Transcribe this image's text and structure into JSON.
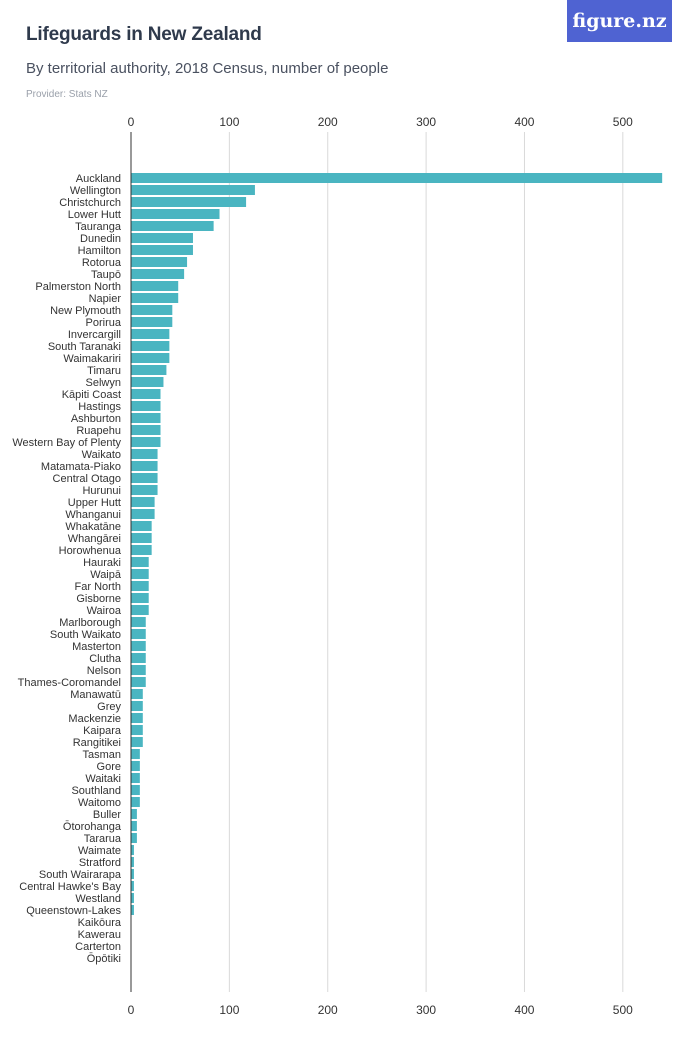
{
  "header": {
    "title": "Lifeguards in New Zealand",
    "subtitle": "By territorial authority, 2018 Census, number of people",
    "provider": "Provider: Stats NZ"
  },
  "logo": {
    "text": "figure.nz"
  },
  "colors": {
    "bar": "#4ab5c1",
    "grid": "#d9d9d9",
    "axis": "#333333",
    "label": "#333333"
  },
  "chart_data": {
    "type": "bar",
    "orientation": "horizontal",
    "title": "Lifeguards in New Zealand",
    "subtitle": "By territorial authority, 2018 Census, number of people",
    "xlabel": "",
    "ylabel": "",
    "xlim": [
      0,
      550
    ],
    "ticks": [
      0,
      100,
      200,
      300,
      400,
      500
    ],
    "tick_positions": [
      "top",
      "bottom"
    ],
    "grid": true,
    "categories": [
      "Auckland",
      "Wellington",
      "Christchurch",
      "Lower Hutt",
      "Tauranga",
      "Dunedin",
      "Hamilton",
      "Rotorua",
      "Taupō",
      "Palmerston North",
      "Napier",
      "New Plymouth",
      "Porirua",
      "Invercargill",
      "South Taranaki",
      "Waimakariri",
      "Timaru",
      "Selwyn",
      "Kāpiti Coast",
      "Hastings",
      "Ashburton",
      "Ruapehu",
      "Western Bay of Plenty",
      "Waikato",
      "Matamata-Piako",
      "Central Otago",
      "Hurunui",
      "Upper Hutt",
      "Whanganui",
      "Whakatāne",
      "Whangārei",
      "Horowhenua",
      "Hauraki",
      "Waipā",
      "Far North",
      "Gisborne",
      "Wairoa",
      "Marlborough",
      "South Waikato",
      "Masterton",
      "Clutha",
      "Nelson",
      "Thames-Coromandel",
      "Manawatū",
      "Grey",
      "Mackenzie",
      "Kaipara",
      "Rangitikei",
      "Tasman",
      "Gore",
      "Waitaki",
      "Southland",
      "Waitomo",
      "Buller",
      "Ōtorohanga",
      "Tararua",
      "Waimate",
      "Stratford",
      "South Wairarapa",
      "Central Hawke's Bay",
      "Westland",
      "Queenstown-Lakes",
      "Kaikōura",
      "Kawerau",
      "Carterton",
      "Ōpōtiki"
    ],
    "values": [
      540,
      126,
      117,
      90,
      84,
      63,
      63,
      57,
      54,
      48,
      48,
      42,
      42,
      39,
      39,
      39,
      36,
      33,
      30,
      30,
      30,
      30,
      30,
      27,
      27,
      27,
      27,
      24,
      24,
      21,
      21,
      21,
      18,
      18,
      18,
      18,
      18,
      15,
      15,
      15,
      15,
      15,
      15,
      12,
      12,
      12,
      12,
      12,
      9,
      9,
      9,
      9,
      9,
      6,
      6,
      6,
      3,
      3,
      3,
      3,
      3,
      3,
      0,
      0,
      0,
      0
    ]
  }
}
